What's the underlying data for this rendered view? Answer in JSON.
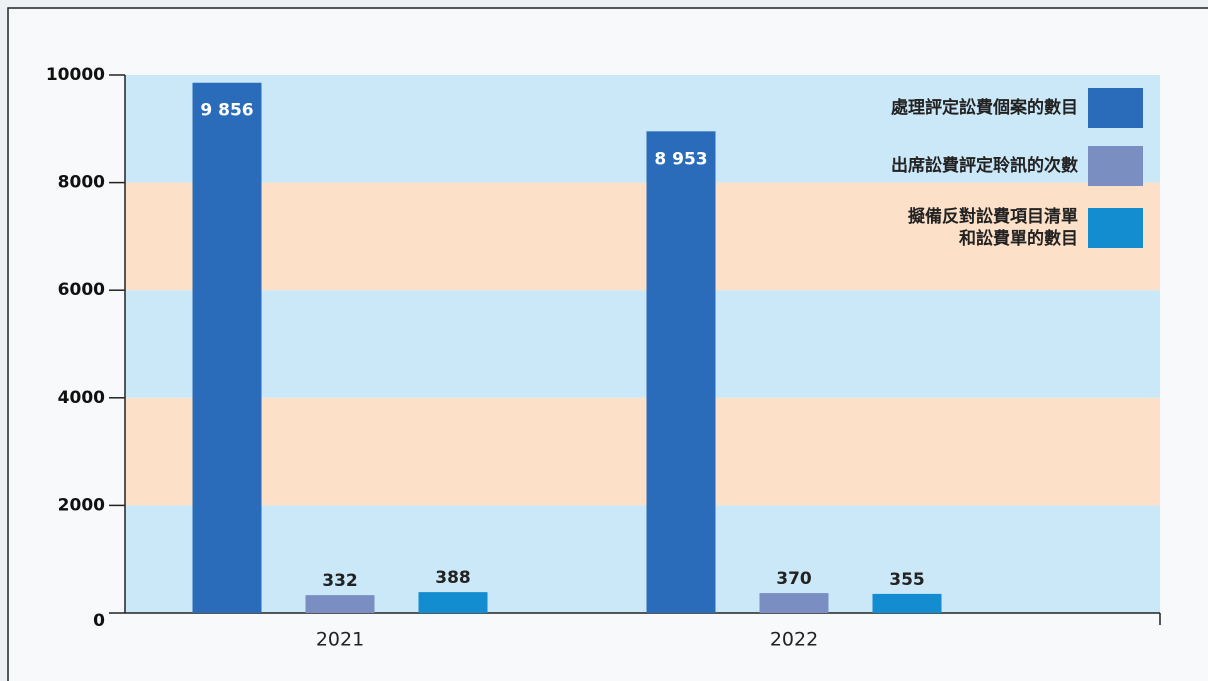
{
  "chart_data": {
    "type": "bar",
    "categories": [
      "2021",
      "2022"
    ],
    "series": [
      {
        "name": "處理評定訟費個案的數目",
        "color": "#2a6cb9",
        "values": [
          9856,
          8953
        ],
        "value_labels": [
          "9 856",
          "8 953"
        ]
      },
      {
        "name": "出席訟費評定聆訊的次數",
        "color": "#7b8ec2",
        "values": [
          332,
          370
        ]
      },
      {
        "name": "擬備反對訟費項目清單\n和訟費單的數目",
        "color": "#138dd0",
        "values": [
          388,
          355
        ]
      }
    ],
    "ylim": [
      0,
      10000
    ],
    "yticks": [
      0,
      2000,
      4000,
      6000,
      8000,
      10000
    ],
    "legend": "top-right"
  }
}
